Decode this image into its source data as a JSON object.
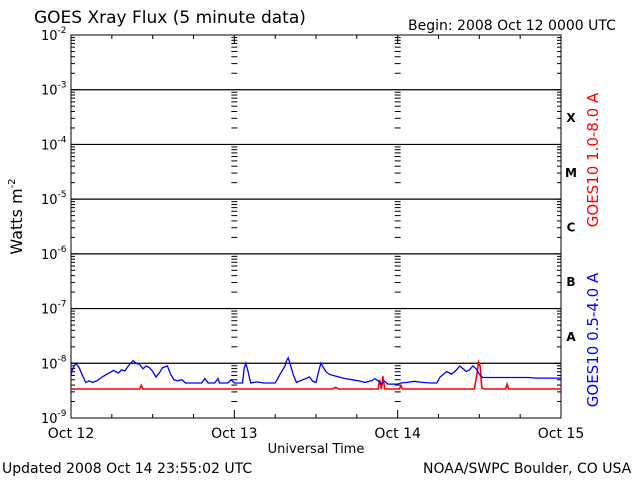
{
  "chart_data": {
    "type": "line",
    "title": "GOES Xray Flux (5 minute data)",
    "begin_label": "Begin:  2008 Oct 12 0000 UTC",
    "xlabel": "Universal Time",
    "ylabel": "Watts m",
    "ylabel_sup": "-2",
    "updated": "Updated 2008 Oct 14 23:55:02 UTC",
    "credit": "NOAA/SWPC Boulder, CO USA",
    "y_scale": "log",
    "ylim_exp": [
      -9,
      -2
    ],
    "y_ticks": [
      {
        "base": "10",
        "exp": "-2"
      },
      {
        "base": "10",
        "exp": "-3"
      },
      {
        "base": "10",
        "exp": "-4"
      },
      {
        "base": "10",
        "exp": "-5"
      },
      {
        "base": "10",
        "exp": "-6"
      },
      {
        "base": "10",
        "exp": "-7"
      },
      {
        "base": "10",
        "exp": "-8"
      },
      {
        "base": "10",
        "exp": "-9"
      }
    ],
    "x_range_days": [
      0,
      3
    ],
    "x_ticks": [
      "Oct 12",
      "Oct 13",
      "Oct 14",
      "Oct 15"
    ],
    "flare_classes": [
      "X",
      "M",
      "C",
      "B",
      "A"
    ],
    "colors": {
      "long": "#ff0000",
      "short": "#0000ff",
      "axis": "#000000"
    },
    "series": [
      {
        "name": "GOES10 1.0-8.0 A",
        "color": "#ff0000",
        "points": [
          [
            0.0,
            -8.47
          ],
          [
            0.42,
            -8.47
          ],
          [
            0.43,
            -8.4
          ],
          [
            0.44,
            -8.47
          ],
          [
            1.6,
            -8.47
          ],
          [
            1.62,
            -8.44
          ],
          [
            1.64,
            -8.47
          ],
          [
            1.88,
            -8.47
          ],
          [
            1.89,
            -8.3
          ],
          [
            1.9,
            -8.47
          ],
          [
            1.91,
            -8.24
          ],
          [
            1.92,
            -8.47
          ],
          [
            2.01,
            -8.47
          ],
          [
            2.02,
            -8.41
          ],
          [
            2.03,
            -8.47
          ],
          [
            2.47,
            -8.47
          ],
          [
            2.485,
            -8.2
          ],
          [
            2.495,
            -7.98
          ],
          [
            2.505,
            -8.05
          ],
          [
            2.515,
            -8.45
          ],
          [
            2.53,
            -8.47
          ],
          [
            2.66,
            -8.47
          ],
          [
            2.67,
            -8.38
          ],
          [
            2.68,
            -8.47
          ],
          [
            3.0,
            -8.47
          ]
        ]
      },
      {
        "name": "GOES10 0.5-4.0 A",
        "color": "#0000ff",
        "points": [
          [
            0.0,
            -8.22
          ],
          [
            0.01,
            -8.1
          ],
          [
            0.03,
            -8.0
          ],
          [
            0.05,
            -8.08
          ],
          [
            0.07,
            -8.22
          ],
          [
            0.09,
            -8.35
          ],
          [
            0.11,
            -8.32
          ],
          [
            0.13,
            -8.35
          ],
          [
            0.16,
            -8.32
          ],
          [
            0.19,
            -8.25
          ],
          [
            0.22,
            -8.2
          ],
          [
            0.26,
            -8.13
          ],
          [
            0.29,
            -8.18
          ],
          [
            0.31,
            -8.12
          ],
          [
            0.33,
            -8.14
          ],
          [
            0.35,
            -8.05
          ],
          [
            0.38,
            -7.95
          ],
          [
            0.4,
            -8.0
          ],
          [
            0.42,
            -8.02
          ],
          [
            0.44,
            -8.1
          ],
          [
            0.46,
            -8.05
          ],
          [
            0.48,
            -8.08
          ],
          [
            0.5,
            -8.15
          ],
          [
            0.52,
            -8.25
          ],
          [
            0.54,
            -8.18
          ],
          [
            0.56,
            -8.08
          ],
          [
            0.59,
            -8.05
          ],
          [
            0.61,
            -8.2
          ],
          [
            0.63,
            -8.3
          ],
          [
            0.65,
            -8.32
          ],
          [
            0.68,
            -8.3
          ],
          [
            0.7,
            -8.36
          ],
          [
            0.8,
            -8.36
          ],
          [
            0.82,
            -8.28
          ],
          [
            0.84,
            -8.36
          ],
          [
            0.88,
            -8.36
          ],
          [
            0.9,
            -8.28
          ],
          [
            0.91,
            -8.36
          ],
          [
            0.96,
            -8.36
          ],
          [
            0.98,
            -8.3
          ],
          [
            1.0,
            -8.36
          ],
          [
            1.05,
            -8.36
          ],
          [
            1.06,
            -8.1
          ],
          [
            1.07,
            -8.0
          ],
          [
            1.08,
            -8.1
          ],
          [
            1.1,
            -8.36
          ],
          [
            1.14,
            -8.34
          ],
          [
            1.18,
            -8.36
          ],
          [
            1.25,
            -8.36
          ],
          [
            1.28,
            -8.2
          ],
          [
            1.31,
            -8.05
          ],
          [
            1.32,
            -7.95
          ],
          [
            1.33,
            -7.9
          ],
          [
            1.34,
            -8.0
          ],
          [
            1.36,
            -8.2
          ],
          [
            1.38,
            -8.35
          ],
          [
            1.42,
            -8.3
          ],
          [
            1.46,
            -8.25
          ],
          [
            1.48,
            -8.33
          ],
          [
            1.5,
            -8.35
          ],
          [
            1.52,
            -8.1
          ],
          [
            1.53,
            -8.0
          ],
          [
            1.54,
            -8.05
          ],
          [
            1.56,
            -8.15
          ],
          [
            1.58,
            -8.2
          ],
          [
            1.6,
            -8.22
          ],
          [
            1.64,
            -8.25
          ],
          [
            1.68,
            -8.28
          ],
          [
            1.72,
            -8.3
          ],
          [
            1.76,
            -8.32
          ],
          [
            1.8,
            -8.35
          ],
          [
            1.84,
            -8.32
          ],
          [
            1.86,
            -8.28
          ],
          [
            1.88,
            -8.32
          ],
          [
            1.9,
            -8.38
          ],
          [
            1.92,
            -8.33
          ],
          [
            1.94,
            -8.38
          ],
          [
            2.0,
            -8.38
          ],
          [
            2.02,
            -8.36
          ],
          [
            2.06,
            -8.35
          ],
          [
            2.1,
            -8.33
          ],
          [
            2.15,
            -8.35
          ],
          [
            2.2,
            -8.36
          ],
          [
            2.24,
            -8.36
          ],
          [
            2.26,
            -8.25
          ],
          [
            2.28,
            -8.2
          ],
          [
            2.3,
            -8.15
          ],
          [
            2.33,
            -8.2
          ],
          [
            2.36,
            -8.12
          ],
          [
            2.38,
            -8.05
          ],
          [
            2.4,
            -8.1
          ],
          [
            2.42,
            -8.15
          ],
          [
            2.44,
            -8.12
          ],
          [
            2.46,
            -8.05
          ],
          [
            2.48,
            -8.1
          ],
          [
            2.5,
            -8.2
          ],
          [
            2.52,
            -8.26
          ],
          [
            2.8,
            -8.26
          ],
          [
            2.85,
            -8.27
          ],
          [
            3.0,
            -8.27
          ]
        ]
      }
    ],
    "grid": true,
    "legend_placement": "right, vertical"
  }
}
